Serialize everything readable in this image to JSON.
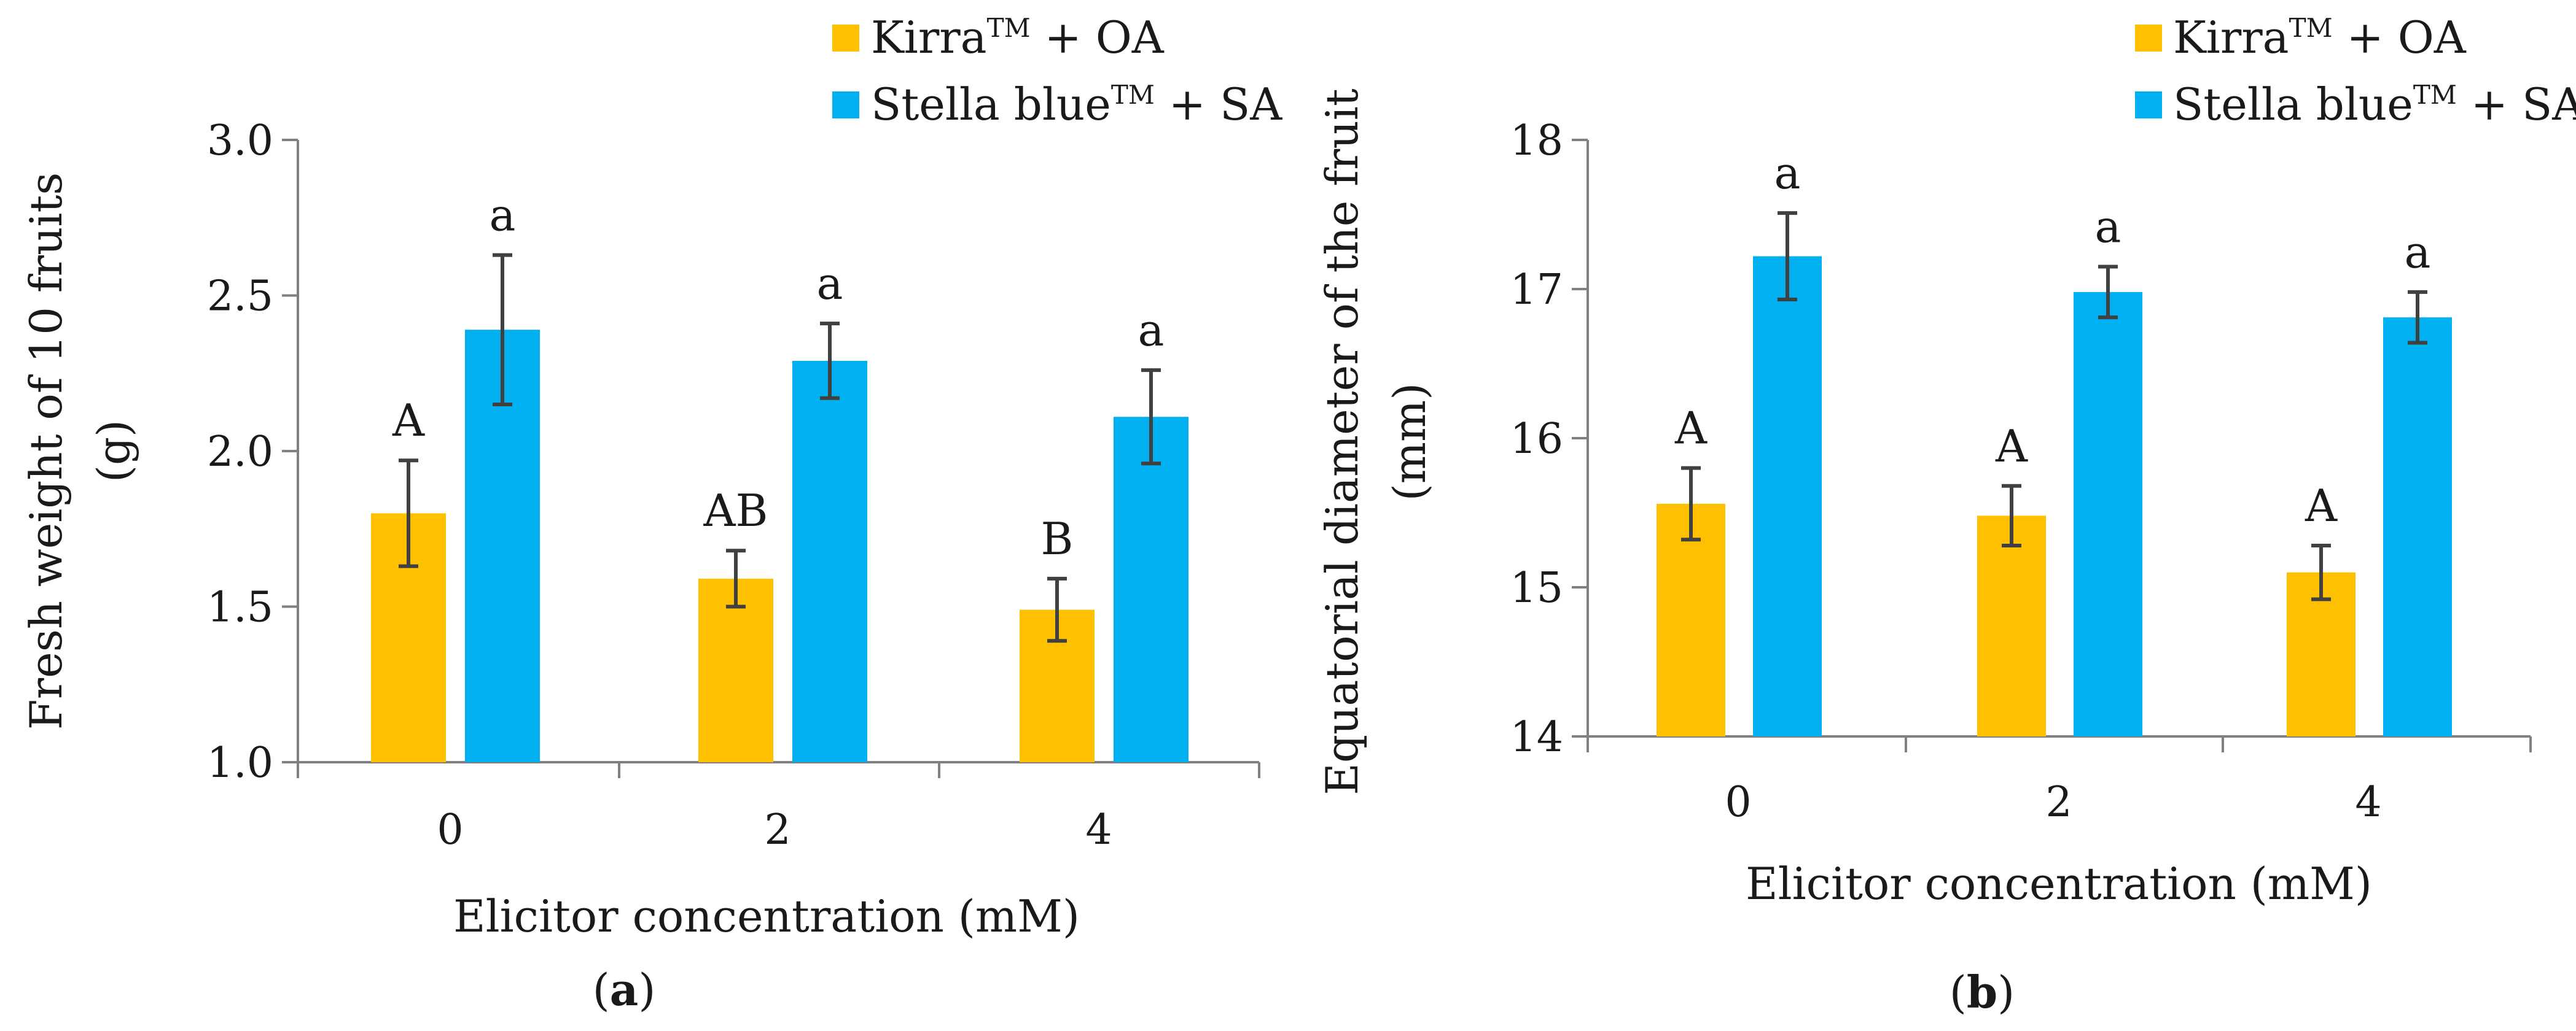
{
  "legend": [
    {
      "name": "Kirra",
      "tm": "TM",
      "suffix": " + OA",
      "color": "#FFC000"
    },
    {
      "name": "Stella blue",
      "tm": "TM",
      "suffix": " + SA",
      "color": "#00B0F0"
    }
  ],
  "chart_data": [
    {
      "type": "bar",
      "panel_label": "a",
      "categories": [
        "0",
        "2",
        "4"
      ],
      "xlabel": "Elicitor concentration (mM)",
      "ylabel_line1": "Fresh weight of 10 fruits",
      "ylabel_line2": "(g)",
      "ylim": [
        1.0,
        3.0
      ],
      "yticks": [
        "1.0",
        "1.5",
        "2.0",
        "2.5",
        "3.0"
      ],
      "series": [
        {
          "name": "Kirra™ + OA",
          "color": "#FFC000",
          "values": [
            1.8,
            1.59,
            1.49
          ],
          "errors": [
            0.17,
            0.09,
            0.1
          ],
          "letters": [
            "A",
            "AB",
            "B"
          ]
        },
        {
          "name": "Stella blue™ + SA",
          "color": "#00B0F0",
          "values": [
            2.39,
            2.29,
            2.11
          ],
          "errors": [
            0.24,
            0.12,
            0.15
          ],
          "letters": [
            "a",
            "a",
            "a"
          ]
        }
      ]
    },
    {
      "type": "bar",
      "panel_label": "b",
      "categories": [
        "0",
        "2",
        "4"
      ],
      "xlabel": "Elicitor concentration (mM)",
      "ylabel_line1": "Equatorial diameter of the fruit",
      "ylabel_line2": "(mm)",
      "ylim": [
        14,
        18
      ],
      "yticks": [
        "14",
        "15",
        "16",
        "17",
        "18"
      ],
      "series": [
        {
          "name": "Kirra™ + OA",
          "color": "#FFC000",
          "values": [
            15.56,
            15.48,
            15.1
          ],
          "errors": [
            0.24,
            0.2,
            0.18
          ],
          "letters": [
            "A",
            "A",
            "A"
          ]
        },
        {
          "name": "Stella blue™ + SA",
          "color": "#00B0F0",
          "values": [
            17.22,
            16.98,
            16.81
          ],
          "errors": [
            0.29,
            0.17,
            0.17
          ],
          "letters": [
            "a",
            "a",
            "a"
          ]
        }
      ]
    }
  ]
}
